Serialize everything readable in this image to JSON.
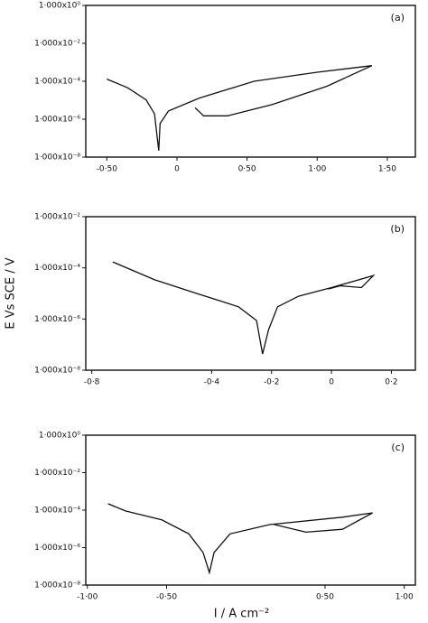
{
  "chart_data": [
    {
      "type": "line",
      "annotation": "(a)",
      "ylog": true,
      "color": "#111111",
      "xlim": [
        -0.65,
        1.7
      ],
      "ylim": [
        1e-08,
        1
      ],
      "xticks": [
        {
          "value": -0.5,
          "label": "-0·50"
        },
        0,
        {
          "value": 0.5,
          "label": "0·50"
        },
        {
          "value": 1,
          "label": "1·00"
        },
        {
          "value": 1.5,
          "label": "1·50"
        }
      ],
      "yticks": [
        {
          "value": 1,
          "label": "1·000x10⁰"
        },
        {
          "value": 0.01,
          "label": "1·000x10⁻²"
        },
        {
          "value": 0.0001,
          "label": "1·000x10⁻⁴"
        },
        {
          "value": 1e-06,
          "label": "1·000x10⁻⁶"
        },
        {
          "value": 1e-08,
          "label": "1·000x10⁻⁸"
        }
      ],
      "x": [
        -0.5,
        -0.35,
        -0.22,
        -0.16,
        -0.13,
        -0.12,
        -0.06,
        0.16,
        0.55,
        1.0,
        1.39,
        1.07,
        0.68,
        0.36,
        0.19,
        0.13
      ],
      "values": [
        0.00013,
        4.5e-05,
        1.05e-05,
        1.9e-06,
        2.2e-08,
        6e-07,
        2.7e-06,
        1.3e-05,
        0.0001,
        0.0003,
        0.00067,
        5.5e-05,
        6e-06,
        1.5e-06,
        1.5e-06,
        4e-06
      ]
    },
    {
      "type": "line",
      "annotation": "(b)",
      "y_label": "E Vs SCE / V",
      "ylog": true,
      "color": "#111111",
      "xlim": [
        -0.82,
        0.28
      ],
      "ylim": [
        1e-08,
        0.01
      ],
      "xticks": [
        {
          "value": -0.8,
          "label": "-0·8"
        },
        {
          "value": -0.4,
          "label": "-0·4"
        },
        {
          "value": -0.2,
          "label": "-0·2"
        },
        0,
        {
          "value": 0.2,
          "label": "0·2"
        }
      ],
      "yticks": [
        {
          "value": 0.01,
          "label": "1·000x10⁻²"
        },
        {
          "value": 0.0001,
          "label": "1·000x10⁻⁴"
        },
        {
          "value": 1e-06,
          "label": "1·000x10⁻⁶"
        },
        {
          "value": 1e-08,
          "label": "1·000x10⁻⁸"
        }
      ],
      "x": [
        -0.73,
        -0.59,
        -0.45,
        -0.31,
        -0.25,
        -0.23,
        -0.21,
        -0.18,
        -0.11,
        0,
        0.14,
        0.1,
        0.03,
        -0.01
      ],
      "values": [
        0.00017,
        3.4e-05,
        1e-05,
        3e-06,
        8.7e-07,
        4.3e-08,
        3.8e-07,
        3e-06,
        7.8e-06,
        1.7e-05,
        5e-05,
        1.7e-05,
        2e-05,
        1.5e-05
      ]
    },
    {
      "type": "line",
      "annotation": "(c)",
      "x_label": "I / A cm⁻²",
      "ylog": true,
      "color": "#111111",
      "xlim": [
        -1.01,
        1.07
      ],
      "ylim": [
        1e-08,
        1
      ],
      "xticks": [
        {
          "value": -1,
          "label": "-1·00"
        },
        {
          "value": -0.5,
          "label": "-0·50"
        },
        {
          "value": 0.5,
          "label": "0·50"
        },
        {
          "value": 1,
          "label": "1·00"
        }
      ],
      "yticks": [
        {
          "value": 1,
          "label": "1·000x10⁰"
        },
        {
          "value": 0.01,
          "label": "1·000x10⁻²"
        },
        {
          "value": 0.0001,
          "label": "1·000x10⁻⁴"
        },
        {
          "value": 1e-06,
          "label": "1·000x10⁻⁶"
        },
        {
          "value": 1e-08,
          "label": "1·000x10⁻⁸"
        }
      ],
      "x": [
        -0.87,
        -0.76,
        -0.53,
        -0.36,
        -0.27,
        -0.23,
        -0.2,
        -0.1,
        0.15,
        0.61,
        0.8,
        0.61,
        0.38,
        0.18
      ],
      "values": [
        0.00022,
        9e-05,
        3e-05,
        5.4e-06,
        5.5e-07,
        4.6e-08,
        5.5e-07,
        5.4e-06,
        1.7e-05,
        4.2e-05,
        7.2e-05,
        9.5e-06,
        6.7e-06,
        1.7e-05
      ]
    }
  ]
}
